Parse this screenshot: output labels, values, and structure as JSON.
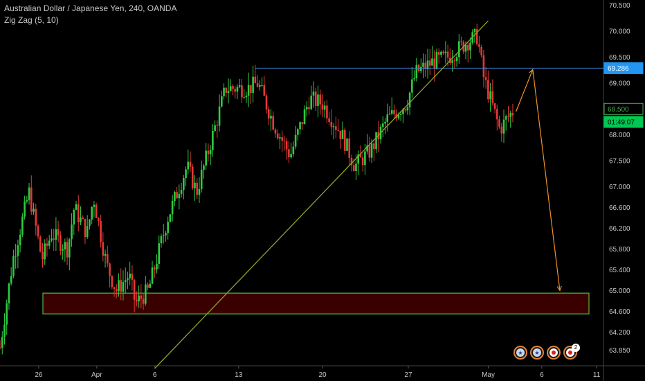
{
  "header": {
    "title": "Australian Dollar / Japanese Yen, 240, OANDA",
    "indicator": "Zig Zag (5, 10)"
  },
  "chart_data": {
    "type": "candlestick",
    "symbol": "AUDJPY",
    "interval": "240",
    "ylim": [
      63.55,
      70.6
    ],
    "y_ticks": [
      "70.500",
      "70.000",
      "69.500",
      "69.000",
      "68.500",
      "68.000",
      "67.500",
      "67.000",
      "66.600",
      "66.200",
      "65.800",
      "65.400",
      "65.000",
      "64.600",
      "64.200",
      "63.850"
    ],
    "y_tick_values": [
      70.5,
      70.0,
      69.5,
      69.0,
      68.5,
      68.0,
      67.5,
      67.0,
      66.6,
      66.2,
      65.8,
      65.4,
      65.0,
      64.6,
      64.2,
      63.85
    ],
    "x_ticks": [
      "26",
      "Apr",
      "6",
      "13",
      "20",
      "27",
      "May",
      "6",
      "11"
    ],
    "x_tick_positions": [
      0.06,
      0.15,
      0.24,
      0.37,
      0.5,
      0.633,
      0.757,
      0.84,
      0.925
    ],
    "price_tags": [
      {
        "label": "69.286",
        "value": 69.286,
        "bg": "#2196f3",
        "fg": "#ffffff"
      },
      {
        "label": "68.500",
        "value": 68.5,
        "bg": "#000000",
        "fg": "#4caf50",
        "border": "#4caf50"
      },
      {
        "label": "01:49:07",
        "value": 68.25,
        "bg": "#00c853",
        "fg": "#000000"
      }
    ],
    "horizontal_line": {
      "value": 69.286,
      "color": "#3d7fd6"
    },
    "zone": {
      "y_top": 64.95,
      "y_bottom": 64.55,
      "fill": "#3a0000",
      "stroke": "#59b83a"
    },
    "trendline": {
      "from": {
        "x": 0.24,
        "y": 63.5
      },
      "to": {
        "x": 0.757,
        "y": 70.2
      },
      "color": "#8fa32e"
    },
    "forecast_path": {
      "color": "#f0922a",
      "points": [
        {
          "x": 0.8,
          "y": 68.45
        },
        {
          "x": 0.826,
          "y": 69.26
        },
        {
          "x": 0.868,
          "y": 65.0
        }
      ]
    },
    "up_color": "#2ecc40",
    "down_color": "#e53935"
  },
  "events": [
    {
      "name": "AU event 1",
      "icon": "au-flag-icon"
    },
    {
      "name": "AU event 2",
      "icon": "au-flag-icon"
    },
    {
      "name": "JP event 1",
      "icon": "jp-flag-icon"
    },
    {
      "name": "JP event 2",
      "icon": "jp-flag-icon",
      "badge": "2"
    }
  ]
}
